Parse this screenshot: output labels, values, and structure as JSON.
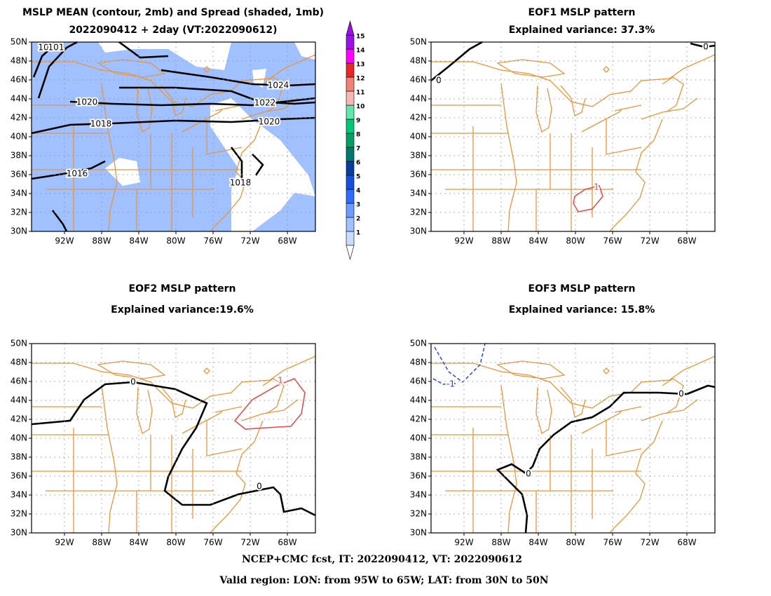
{
  "panels": [
    {
      "title": [
        "MSLP MEAN (contour, 2mb) and Spread (shaded, 1mb)",
        "2022090412 + 2day (VT:2022090612)"
      ],
      "contour_labels": [
        "10",
        "101",
        "1020",
        "1018",
        "1016",
        "1024",
        "1022",
        "1020",
        "1018"
      ]
    },
    {
      "title": [
        "EOF1  MSLP pattern",
        "Explained variance: 37.3%"
      ],
      "contour_labels": [
        "0",
        "0",
        "1"
      ]
    },
    {
      "title": [
        "EOF2  MSLP pattern",
        "Explained variance:19.6%"
      ],
      "contour_labels": [
        "0",
        "0",
        "1"
      ]
    },
    {
      "title": [
        "EOF3  MSLP pattern",
        "Explained variance: 15.8%"
      ],
      "contour_labels": [
        "-1",
        "0",
        "0"
      ]
    }
  ],
  "lat_labels": [
    "50N",
    "48N",
    "46N",
    "44N",
    "42N",
    "40N",
    "38N",
    "36N",
    "34N",
    "32N",
    "30N"
  ],
  "lon_labels": [
    "92W",
    "88W",
    "84W",
    "80W",
    "76W",
    "72W",
    "68W"
  ],
  "colorbar": {
    "labels": [
      "1",
      "2",
      "3",
      "4",
      "5",
      "6",
      "7",
      "8",
      "9",
      "10",
      "11",
      "12",
      "13",
      "14",
      "15"
    ],
    "colors": [
      "#c8dcff",
      "#a0c0ff",
      "#6e9bff",
      "#2f6bff",
      "#1450dc",
      "#0a3ca0",
      "#00786e",
      "#00a064",
      "#00c878",
      "#64e6aa",
      "#f5b9b4",
      "#f08278",
      "#e62828",
      "#ff00ff",
      "#9a10e6"
    ]
  },
  "footer": [
    "NCEP+CMC fcst, IT: 2022090412, VT: 2022090612",
    "Valid region: LON: from 95W to 65W; LAT: from 30N to 50N"
  ]
}
